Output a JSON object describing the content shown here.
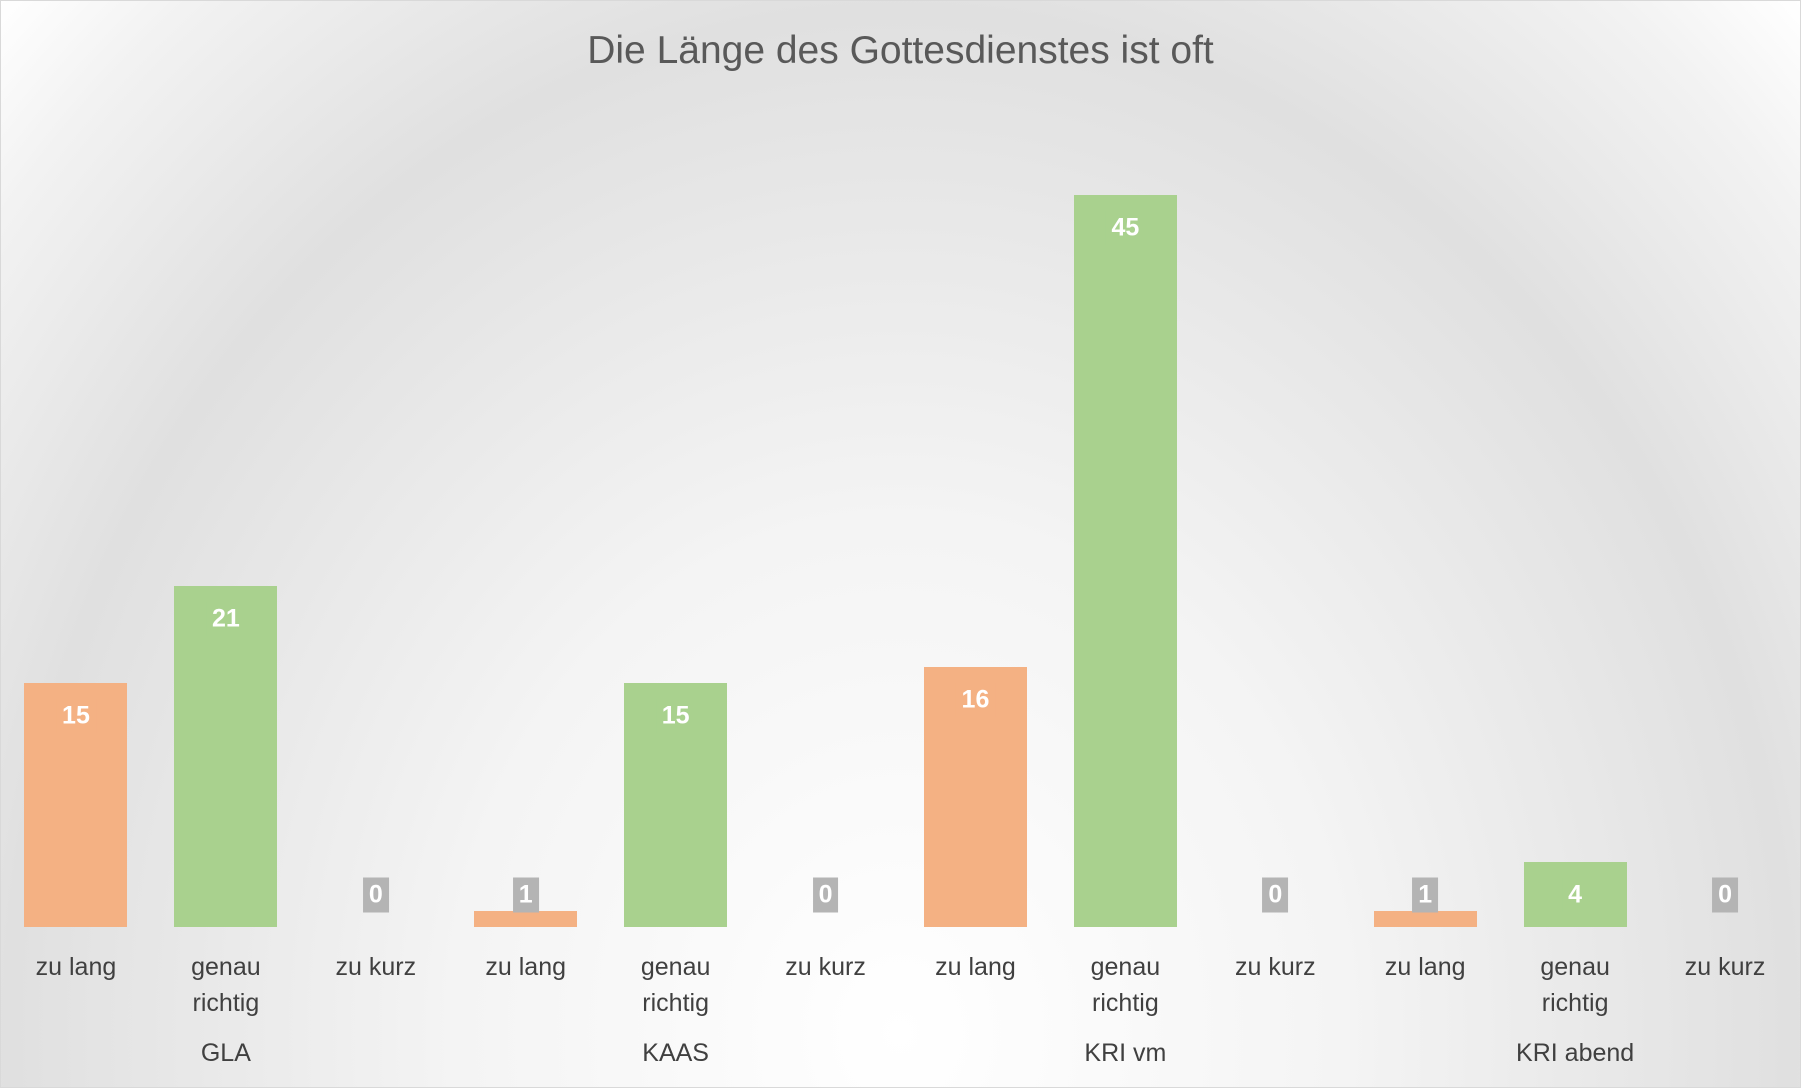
{
  "chart_data": {
    "type": "bar",
    "title": "Die Länge des Gottesdienstes ist oft",
    "groups": [
      {
        "label": "GLA",
        "categories": [
          "zu lang",
          "genau richtig",
          "zu kurz"
        ],
        "values": [
          15,
          21,
          0
        ]
      },
      {
        "label": "KAAS",
        "categories": [
          "zu lang",
          "genau richtig",
          "zu kurz"
        ],
        "values": [
          1,
          15,
          0
        ]
      },
      {
        "label": "KRI vm",
        "categories": [
          "zu lang",
          "genau richtig",
          "zu kurz"
        ],
        "values": [
          16,
          45,
          0
        ]
      },
      {
        "label": "KRI abend",
        "categories": [
          "zu lang",
          "genau richtig",
          "zu kurz"
        ],
        "values": [
          1,
          4,
          0
        ]
      }
    ],
    "category_colors": [
      "#f4b183",
      "#a9d18e",
      "#a5a5a5"
    ],
    "ylim": [
      0,
      50
    ]
  }
}
